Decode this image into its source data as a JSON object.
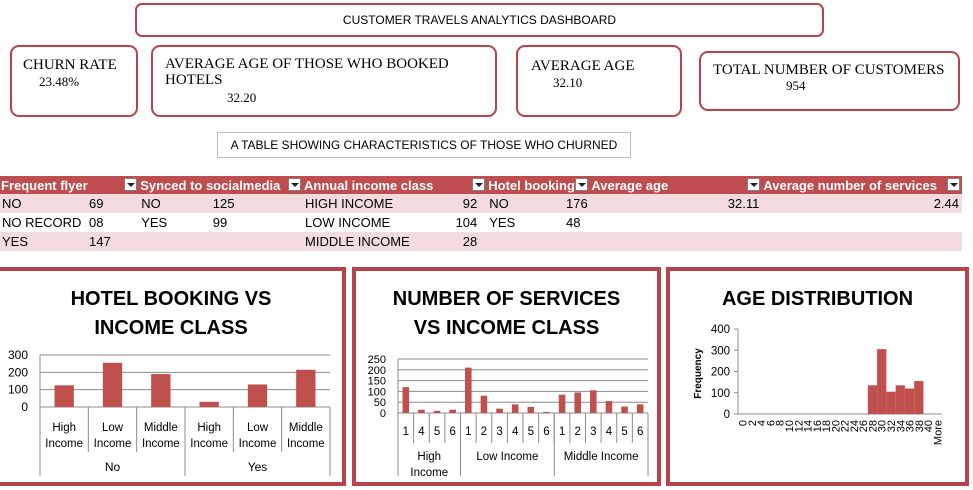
{
  "dashboard_title": "CUSTOMER TRAVELS  ANALYTICS DASHBOARD",
  "kpis": {
    "churn_rate": {
      "label": "CHURN RATE",
      "value": "23.48%"
    },
    "avg_age_hotels": {
      "label": "AVERAGE AGE OF THOSE WHO BOOKED HOTELS",
      "value": "32.20"
    },
    "avg_age": {
      "label": "AVERAGE AGE",
      "value": "32.10"
    },
    "total_customers": {
      "label": "TOTAL NUMBER OF CUSTOMERS",
      "value": "954"
    }
  },
  "table_caption": "A TABLE SHOWING CHARACTERISTICS OF THOSE WHO CHURNED",
  "table": {
    "headers": [
      "Frequent flyer",
      "Synced to socialmedia",
      "Annual income class",
      "Hotel booking",
      "Average age",
      "Average number of services"
    ],
    "rows": [
      [
        "NO",
        "69",
        "NO",
        "125",
        "HIGH INCOME",
        "92",
        "NO",
        "176",
        "32.11",
        "2.44"
      ],
      [
        "NO RECORD",
        "08",
        "YES",
        "99",
        "LOW INCOME",
        "104",
        "YES",
        "48",
        "",
        ""
      ],
      [
        "YES",
        "147",
        "",
        "",
        "MIDDLE INCOME",
        "28",
        "",
        "",
        "",
        ""
      ]
    ]
  },
  "colors": {
    "accent": "#b6444a",
    "bar": "#c0504d",
    "header": "#bf4c4f",
    "band": "#f2dcdd"
  },
  "chart_data": [
    {
      "type": "bar",
      "title": "HOTEL BOOKING VS INCOME CLASS",
      "groups": [
        "No",
        "Yes"
      ],
      "categories": [
        "High Income",
        "Low Income",
        "Middle Income"
      ],
      "category_labels": [
        [
          "High",
          "Income"
        ],
        [
          "Low",
          "Income"
        ],
        [
          "Middle",
          "Income"
        ]
      ],
      "values": [
        [
          125,
          255,
          190
        ],
        [
          30,
          130,
          215
        ]
      ],
      "ylim": [
        0,
        300
      ],
      "yticks": [
        "0",
        "100",
        "200",
        "300"
      ],
      "grid": true
    },
    {
      "type": "bar",
      "title": "NUMBER OF SERVICES VS INCOME CLASS",
      "groups": [
        "High Income",
        "Low Income",
        "Middle Income"
      ],
      "group_labels": [
        [
          "High",
          "Income"
        ],
        [
          "Low Income"
        ],
        [
          "Middle Income"
        ]
      ],
      "x": [
        "1",
        "4",
        "5",
        "6",
        "1",
        "2",
        "3",
        "4",
        "5",
        "6",
        "1",
        "2",
        "3",
        "4",
        "5",
        "6"
      ],
      "values": [
        120,
        15,
        10,
        15,
        210,
        80,
        20,
        40,
        28,
        5,
        85,
        95,
        105,
        55,
        30,
        40
      ],
      "ylim": [
        0,
        250
      ],
      "yticks": [
        "0",
        "50",
        "100",
        "150",
        "200",
        "250"
      ],
      "grid": true
    },
    {
      "type": "bar",
      "title": "AGE DISTRIBUTION",
      "ylabel": "Frequency",
      "x": [
        "0",
        "2",
        "4",
        "6",
        "8",
        "10",
        "12",
        "14",
        "16",
        "18",
        "20",
        "22",
        "24",
        "26",
        "28",
        "30",
        "32",
        "34",
        "36",
        "38",
        "40",
        "More"
      ],
      "values": [
        0,
        0,
        0,
        0,
        0,
        0,
        0,
        0,
        0,
        0,
        0,
        0,
        0,
        0,
        135,
        305,
        105,
        135,
        120,
        155,
        0,
        0
      ],
      "ylim": [
        0,
        400
      ],
      "yticks": [
        "0",
        "100",
        "200",
        "300",
        "400"
      ],
      "grid": false
    }
  ]
}
